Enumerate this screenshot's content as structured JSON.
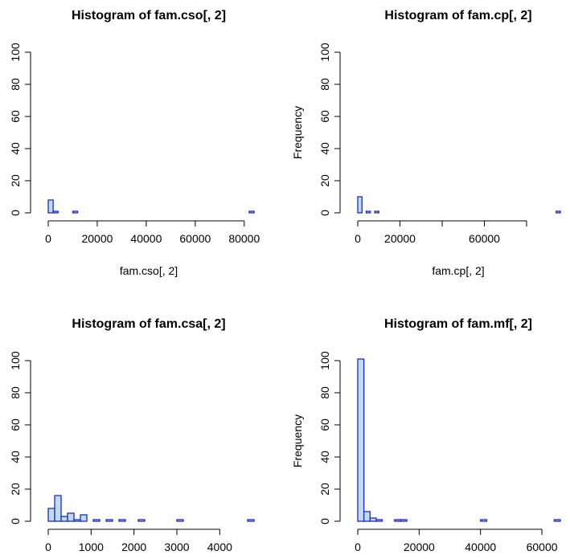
{
  "colors": {
    "bar_fill": "#bfdcf3",
    "bar_stroke": "#1d2bb8",
    "axis": "#000000"
  },
  "chart_data": [
    {
      "type": "bar",
      "title": "Histogram of fam.cso[, 2]",
      "xlabel": "fam.cso[, 2]",
      "ylabel": "",
      "xlim": [
        0,
        84000
      ],
      "ylim": [
        0,
        100
      ],
      "x_ticks": [
        0,
        20000,
        40000,
        60000,
        80000
      ],
      "x_tick_labels": [
        "0",
        "20000",
        "40000",
        "60000",
        "80000"
      ],
      "y_ticks": [
        0,
        20,
        40,
        60,
        80,
        100
      ],
      "y_tick_labels": [
        "0",
        "20",
        "40",
        "60",
        "80",
        "100"
      ],
      "bin_width": 2000,
      "bin_start": 0,
      "counts": [
        8,
        1,
        0,
        0,
        0,
        1,
        0,
        0,
        0,
        0,
        0,
        0,
        0,
        0,
        0,
        0,
        0,
        0,
        0,
        0,
        0,
        0,
        0,
        0,
        0,
        0,
        0,
        0,
        0,
        0,
        0,
        0,
        0,
        0,
        0,
        0,
        0,
        0,
        0,
        0,
        0,
        1
      ],
      "grid": false
    },
    {
      "type": "bar",
      "title": "Histogram of fam.cp[, 2]",
      "xlabel": "fam.cp[, 2]",
      "ylabel": "Frequency",
      "xlim": [
        0,
        96000
      ],
      "ylim": [
        0,
        100
      ],
      "x_ticks": [
        0,
        20000,
        40000,
        60000,
        80000
      ],
      "x_tick_labels": [
        "0",
        "20000",
        "",
        "60000",
        ""
      ],
      "y_ticks": [
        0,
        20,
        40,
        60,
        80,
        100
      ],
      "y_tick_labels": [
        "0",
        "20",
        "40",
        "60",
        "80",
        "100"
      ],
      "bin_width": 2000,
      "bin_start": 0,
      "counts": [
        10,
        0,
        1,
        0,
        1,
        0,
        0,
        0,
        0,
        0,
        0,
        0,
        0,
        0,
        0,
        0,
        0,
        0,
        0,
        0,
        0,
        0,
        0,
        0,
        0,
        0,
        0,
        0,
        0,
        0,
        0,
        0,
        0,
        0,
        0,
        0,
        0,
        0,
        0,
        0,
        0,
        0,
        0,
        0,
        0,
        0,
        0,
        1
      ],
      "grid": false
    },
    {
      "type": "bar",
      "title": "Histogram of fam.csa[, 2]",
      "xlabel": "",
      "ylabel": "",
      "xlim": [
        0,
        4800
      ],
      "ylim": [
        0,
        100
      ],
      "x_ticks": [
        0,
        1000,
        2000,
        3000,
        4000
      ],
      "x_tick_labels": [
        "0",
        "1000",
        "2000",
        "3000",
        "4000"
      ],
      "y_ticks": [
        0,
        20,
        40,
        60,
        80,
        100
      ],
      "y_tick_labels": [
        "0",
        "20",
        "40",
        "60",
        "80",
        "100"
      ],
      "bin_width": 150,
      "bin_start": 0,
      "counts": [
        8,
        16,
        3,
        5,
        1,
        4,
        0,
        1,
        0,
        1,
        0,
        1,
        0,
        0,
        1,
        0,
        0,
        0,
        0,
        0,
        1,
        0,
        0,
        0,
        0,
        0,
        0,
        0,
        0,
        0,
        0,
        1
      ],
      "grid": false
    },
    {
      "type": "bar",
      "title": "Histogram of fam.mf[, 2]",
      "xlabel": "",
      "ylabel": "Frequency",
      "xlim": [
        0,
        66000
      ],
      "ylim": [
        0,
        100
      ],
      "x_ticks": [
        0,
        20000,
        40000,
        60000
      ],
      "x_tick_labels": [
        "0",
        "20000",
        "40000",
        "60000"
      ],
      "y_ticks": [
        0,
        20,
        40,
        60,
        80,
        100
      ],
      "y_tick_labels": [
        "0",
        "20",
        "40",
        "60",
        "80",
        "100"
      ],
      "bin_width": 2000,
      "bin_start": 0,
      "counts": [
        101,
        6,
        2,
        1,
        0,
        0,
        1,
        1,
        0,
        0,
        0,
        0,
        0,
        0,
        0,
        0,
        0,
        0,
        0,
        0,
        1,
        0,
        0,
        0,
        0,
        0,
        0,
        0,
        0,
        0,
        0,
        0,
        1
      ],
      "grid": false
    }
  ]
}
